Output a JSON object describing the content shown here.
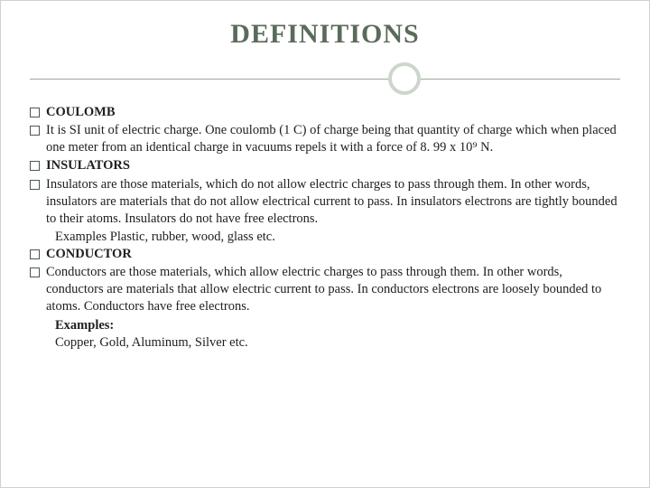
{
  "slide": {
    "title": "DEFINITIONS",
    "title_color": "#5a6b5a",
    "divider_color": "#9aa89a",
    "circle_border_color": "#cdd6cd",
    "background_color": "#ffffff",
    "text_color": "#202020",
    "font_family": "Georgia",
    "title_fontsize": 30,
    "body_fontsize": 14.5
  },
  "entries": [
    {
      "kind": "term",
      "text": "COULOMB"
    },
    {
      "kind": "def",
      "text": "    It is SI unit of electric charge. One coulomb (1 C) of charge being that quantity of charge which when     placed one meter from an identical charge in vacuums repels it with a force of 8. 99 x 10⁹ N."
    },
    {
      "kind": "term",
      "text": "INSULATORS"
    },
    {
      "kind": "def",
      "text": "    Insulators are those materials, which do not allow electric charges to pass through them. In other words,     insulators are materials that do not allow electrical current to pass. In insulators electrons are tightly    bounded to their atoms. Insulators do not have free electrons."
    },
    {
      "kind": "example_inline",
      "text": "       Examples Plastic, rubber, wood, glass etc."
    },
    {
      "kind": "term",
      "text": "CONDUCTOR"
    },
    {
      "kind": "def",
      "text": "    Conductors are those materials, which allow electric charges to pass through them. In other words,         conductors  are  materials  that allow  electric current to pass. In conductors electrons are loosely bounded    to atoms. Conductors have free electrons."
    },
    {
      "kind": "example_label",
      "text": "Examples:"
    },
    {
      "kind": "example_list",
      "text": "Copper, Gold, Aluminum, Silver etc."
    }
  ]
}
